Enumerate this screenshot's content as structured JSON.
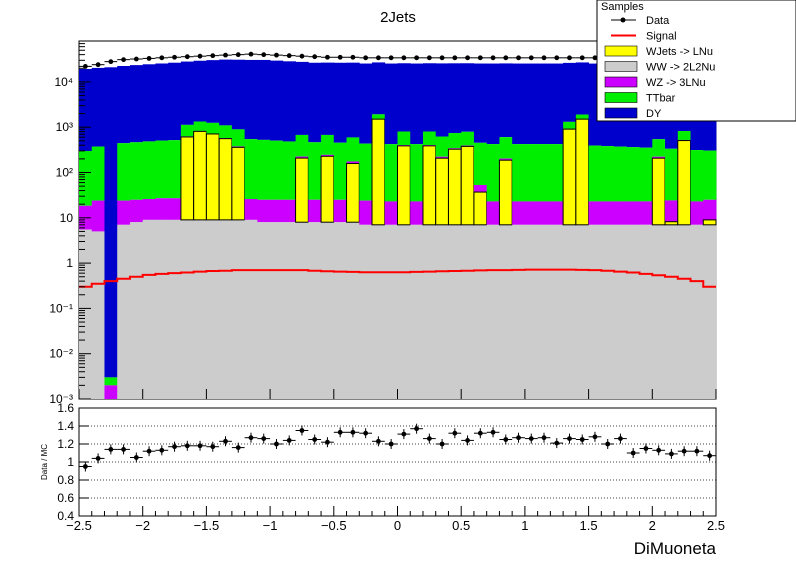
{
  "chart_data": [
    {
      "type": "area",
      "title": "2Jets",
      "xlabel": "",
      "ylabel": "",
      "yscale": "log",
      "ylim": [
        0.001,
        80000
      ],
      "xlim": [
        -2.5,
        2.5
      ],
      "bins": 50,
      "legend": {
        "header": "Samples",
        "placement": "top-right",
        "entries": [
          {
            "name": "Data",
            "style": "marker",
            "color": "#000000"
          },
          {
            "name": "Signal",
            "style": "line",
            "color": "#ff0000"
          },
          {
            "name": "WJets -> LNu",
            "style": "fill",
            "color": "#ffff00"
          },
          {
            "name": "WW -> 2L2Nu",
            "style": "fill",
            "color": "#cccccc"
          },
          {
            "name": "WZ -> 3LNu",
            "style": "fill",
            "color": "#cc00ff"
          },
          {
            "name": "TTbar",
            "style": "fill",
            "color": "#00ee00"
          },
          {
            "name": "DY",
            "style": "fill",
            "color": "#0000cc"
          }
        ]
      },
      "yticks": [
        {
          "value": 0.001,
          "label": "10⁻³"
        },
        {
          "value": 0.01,
          "label": "10⁻²"
        },
        {
          "value": 0.1,
          "label": "10⁻¹"
        },
        {
          "value": 1,
          "label": "1"
        },
        {
          "value": 10,
          "label": "10"
        },
        {
          "value": 100,
          "label": "10²"
        },
        {
          "value": 1000,
          "label": "10³"
        },
        {
          "value": 10000,
          "label": "10⁴"
        }
      ],
      "series": [
        {
          "name": "WW -> 2L2Nu",
          "color": "#cccccc",
          "values": [
            5.5,
            5.0,
            0.001,
            7.0,
            8.0,
            9.0,
            9.0,
            9.0,
            9.0,
            9.0,
            9.0,
            9.0,
            9.0,
            9.0,
            8.0,
            8.0,
            8.0,
            8.0,
            8.0,
            8.0,
            8.0,
            8.0,
            7.0,
            7.0,
            7.0,
            7.0,
            7.0,
            7.0,
            7.0,
            7.0,
            7.0,
            7.0,
            7.0,
            7.0,
            7.0,
            7.0,
            7.0,
            7.0,
            7.0,
            7.0,
            7.0,
            7.0,
            7.0,
            7.0,
            7.0,
            7.0,
            7.0,
            7.0,
            7.0,
            7.0
          ]
        },
        {
          "name": "WJets -> LNu",
          "color": "#ffff00",
          "values": [
            0,
            0,
            0,
            0,
            0,
            0,
            0,
            0,
            0,
            0,
            0,
            0,
            0,
            0,
            0,
            0,
            0,
            0,
            0,
            0,
            0,
            0,
            0,
            0,
            0,
            0,
            0,
            0,
            0,
            0,
            0,
            0,
            0,
            0,
            0,
            0,
            0,
            0,
            0,
            0,
            0,
            0,
            0,
            0,
            0,
            0,
            0,
            0,
            0,
            0
          ]
        },
        {
          "name": "WZ -> 3LNu",
          "color": "#cc00ff",
          "values": [
            13,
            19,
            0.001,
            17,
            17,
            17,
            18,
            18,
            18,
            18,
            18,
            18,
            17,
            17,
            17,
            17,
            17,
            17,
            17,
            17,
            17,
            17,
            17,
            17,
            16,
            16,
            16,
            16,
            16,
            16,
            16,
            16,
            16,
            16,
            16,
            16,
            16,
            16,
            16,
            16,
            16,
            16,
            16,
            16,
            16,
            16,
            16,
            16,
            16,
            16
          ]
        },
        {
          "name": "TTbar",
          "color": "#00ee00",
          "values": [
            280,
            350,
            0.001,
            420,
            440,
            460,
            480,
            490,
            500,
            510,
            520,
            520,
            520,
            520,
            500,
            480,
            460,
            450,
            440,
            430,
            430,
            420,
            410,
            400,
            400,
            400,
            400,
            400,
            400,
            400,
            400,
            400,
            400,
            400,
            400,
            400,
            400,
            400,
            390,
            380,
            370,
            360,
            350,
            340,
            330,
            320,
            310,
            300,
            290,
            280
          ]
        },
        {
          "name": "DY",
          "color": "#0000cc",
          "values": [
            19000,
            20000,
            21000,
            22000,
            23000,
            24000,
            25000,
            26000,
            27000,
            28000,
            29000,
            30000,
            30000,
            30000,
            30000,
            29000,
            28000,
            27000,
            26000,
            26000,
            26000,
            26000,
            25000,
            25000,
            25000,
            25000,
            25000,
            25000,
            25000,
            25000,
            25000,
            25000,
            25000,
            25000,
            25000,
            25000,
            25000,
            25000,
            25000,
            25000,
            25000,
            25000,
            25000,
            25000,
            25000,
            25000,
            25000,
            25000,
            25000,
            25000
          ]
        }
      ],
      "wjets_spikes": [
        {
          "bin": 8,
          "value": 600
        },
        {
          "bin": 9,
          "value": 800
        },
        {
          "bin": 10,
          "value": 700
        },
        {
          "bin": 11,
          "value": 550
        },
        {
          "bin": 12,
          "value": 350
        },
        {
          "bin": 17,
          "value": 200
        },
        {
          "bin": 19,
          "value": 220
        },
        {
          "bin": 21,
          "value": 150
        },
        {
          "bin": 23,
          "value": 1500
        },
        {
          "bin": 25,
          "value": 380
        },
        {
          "bin": 27,
          "value": 380
        },
        {
          "bin": 28,
          "value": 200
        },
        {
          "bin": 29,
          "value": 320
        },
        {
          "bin": 30,
          "value": 370
        },
        {
          "bin": 31,
          "value": 30
        },
        {
          "bin": 33,
          "value": 180
        },
        {
          "bin": 38,
          "value": 900
        },
        {
          "bin": 39,
          "value": 1500
        },
        {
          "bin": 44,
          "value": 0.02
        },
        {
          "bin": 45,
          "value": 200
        },
        {
          "bin": 46,
          "value": 1.2
        },
        {
          "bin": 47,
          "value": 500
        },
        {
          "bin": 49,
          "value": 2.0
        }
      ],
      "signal": {
        "name": "Signal",
        "color": "#ff0000",
        "values": [
          0.3,
          0.35,
          0.4,
          0.45,
          0.5,
          0.55,
          0.58,
          0.6,
          0.62,
          0.65,
          0.67,
          0.68,
          0.7,
          0.7,
          0.7,
          0.7,
          0.7,
          0.7,
          0.68,
          0.66,
          0.65,
          0.64,
          0.63,
          0.63,
          0.63,
          0.63,
          0.64,
          0.65,
          0.66,
          0.67,
          0.68,
          0.69,
          0.7,
          0.7,
          0.71,
          0.72,
          0.72,
          0.72,
          0.72,
          0.71,
          0.7,
          0.68,
          0.65,
          0.62,
          0.58,
          0.54,
          0.5,
          0.45,
          0.4,
          0.3
        ]
      },
      "data": {
        "name": "Data",
        "values": [
          22000,
          24000,
          28000,
          31000,
          32000,
          33000,
          34000,
          35000,
          36000,
          37000,
          38000,
          39000,
          40000,
          41000,
          40000,
          39000,
          38000,
          37000,
          36000,
          35000,
          35000,
          35000,
          34000,
          34000,
          34000,
          34000,
          34000,
          34000,
          34000,
          34000,
          34000,
          34000,
          34000,
          34000,
          34000,
          34000,
          34000,
          34000,
          34000,
          34000,
          34000,
          34000,
          34000,
          34000,
          34000,
          34000,
          34000,
          34000,
          34000,
          34000
        ]
      }
    },
    {
      "type": "scatter",
      "xlabel": "DiMuoneta",
      "ylabel": "Data / MC",
      "xlim": [
        -2.5,
        2.5
      ],
      "ylim": [
        0.4,
        1.6
      ],
      "grid": "horizontal-dotted",
      "xticks": [
        -2.5,
        -2,
        -1.5,
        -1,
        -0.5,
        0,
        0.5,
        1,
        1.5,
        2,
        2.5
      ],
      "xtick_labels": [
        "−2.5",
        "−2",
        "−1.5",
        "−1",
        "−0.5",
        "0",
        "0.5",
        "1",
        "1.5",
        "2",
        "2.5"
      ],
      "yticks": [
        0.4,
        0.6,
        0.8,
        1,
        1.2,
        1.4,
        1.6
      ],
      "ytick_labels": [
        "0.4",
        "0.6",
        "0.8",
        "1",
        "1.2",
        "1.4",
        "1.6"
      ],
      "x": [
        -2.45,
        -2.35,
        -2.25,
        -2.15,
        -2.05,
        -1.95,
        -1.85,
        -1.75,
        -1.65,
        -1.55,
        -1.45,
        -1.35,
        -1.25,
        -1.15,
        -1.05,
        -0.95,
        -0.85,
        -0.75,
        -0.65,
        -0.55,
        -0.45,
        -0.35,
        -0.25,
        -0.15,
        -0.05,
        0.05,
        0.15,
        0.25,
        0.35,
        0.45,
        0.55,
        0.65,
        0.75,
        0.85,
        0.95,
        1.05,
        1.15,
        1.25,
        1.35,
        1.45,
        1.55,
        1.65,
        1.75,
        1.85,
        1.95,
        2.05,
        2.15,
        2.25,
        2.35,
        2.45
      ],
      "y": [
        0.95,
        1.04,
        1.14,
        1.14,
        1.05,
        1.12,
        1.13,
        1.17,
        1.18,
        1.18,
        1.17,
        1.23,
        1.16,
        1.27,
        1.26,
        1.2,
        1.24,
        1.35,
        1.25,
        1.22,
        1.33,
        1.33,
        1.32,
        1.23,
        1.2,
        1.31,
        1.37,
        1.26,
        1.2,
        1.32,
        1.24,
        1.32,
        1.33,
        1.25,
        1.27,
        1.26,
        1.27,
        1.21,
        1.26,
        1.25,
        1.28,
        1.2,
        1.26,
        1.1,
        1.15,
        1.13,
        1.09,
        1.12,
        1.12,
        1.07
      ]
    }
  ]
}
